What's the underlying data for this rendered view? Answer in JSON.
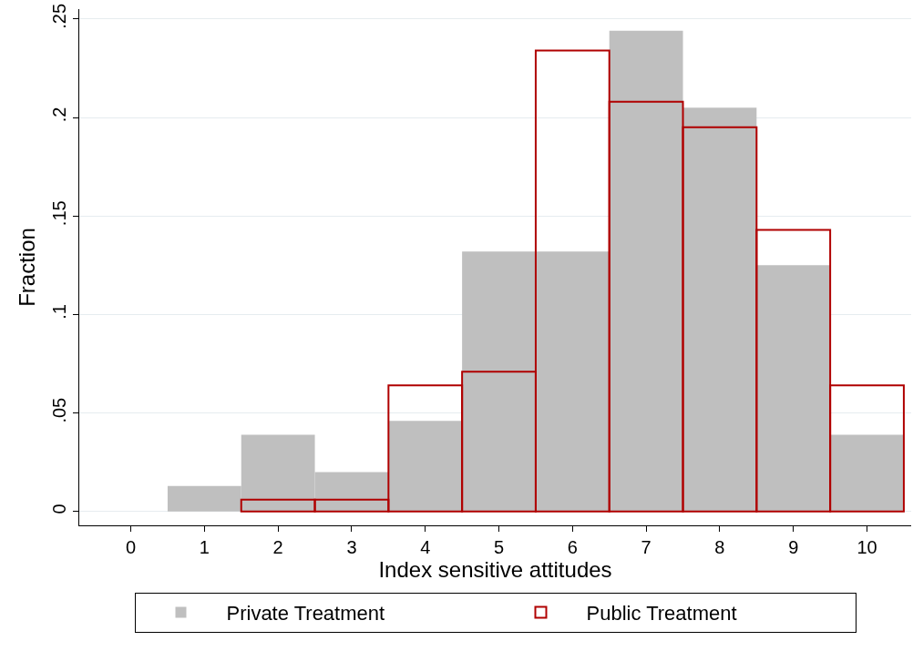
{
  "chart_data": {
    "type": "histogram",
    "xlabel": "Index sensitive attitudes",
    "ylabel": "Fraction",
    "bins": [
      -0.5,
      0.5,
      1.5,
      2.5,
      3.5,
      4.5,
      5.5,
      6.5,
      7.5,
      8.5,
      9.5,
      10.5
    ],
    "series": [
      {
        "name": "Private Treatment",
        "color": "#bfbfbf",
        "values": [
          null,
          0.013,
          0.039,
          0.02,
          0.046,
          0.132,
          0.132,
          0.244,
          0.205,
          0.125,
          0.039
        ]
      },
      {
        "name": "Public Treatment",
        "color": "#b00000",
        "values": [
          null,
          null,
          0.006,
          0.006,
          0.064,
          0.071,
          0.234,
          0.208,
          0.195,
          0.143,
          0.064
        ]
      }
    ],
    "xlim": [
      -0.7,
      10.6
    ],
    "xticks": [
      0,
      1,
      2,
      3,
      4,
      5,
      6,
      7,
      8,
      9,
      10
    ],
    "ylim": [
      -0.007,
      0.255
    ],
    "yticks": [
      0,
      {
        "value": 0.05,
        "label": ".05"
      },
      {
        "value": 0.1,
        "label": ".1"
      },
      {
        "value": 0.15,
        "label": ".15"
      },
      {
        "value": 0.2,
        "label": ".2"
      },
      {
        "value": 0.25,
        "label": ".25"
      }
    ],
    "grid": "y",
    "legend": "bottom"
  }
}
